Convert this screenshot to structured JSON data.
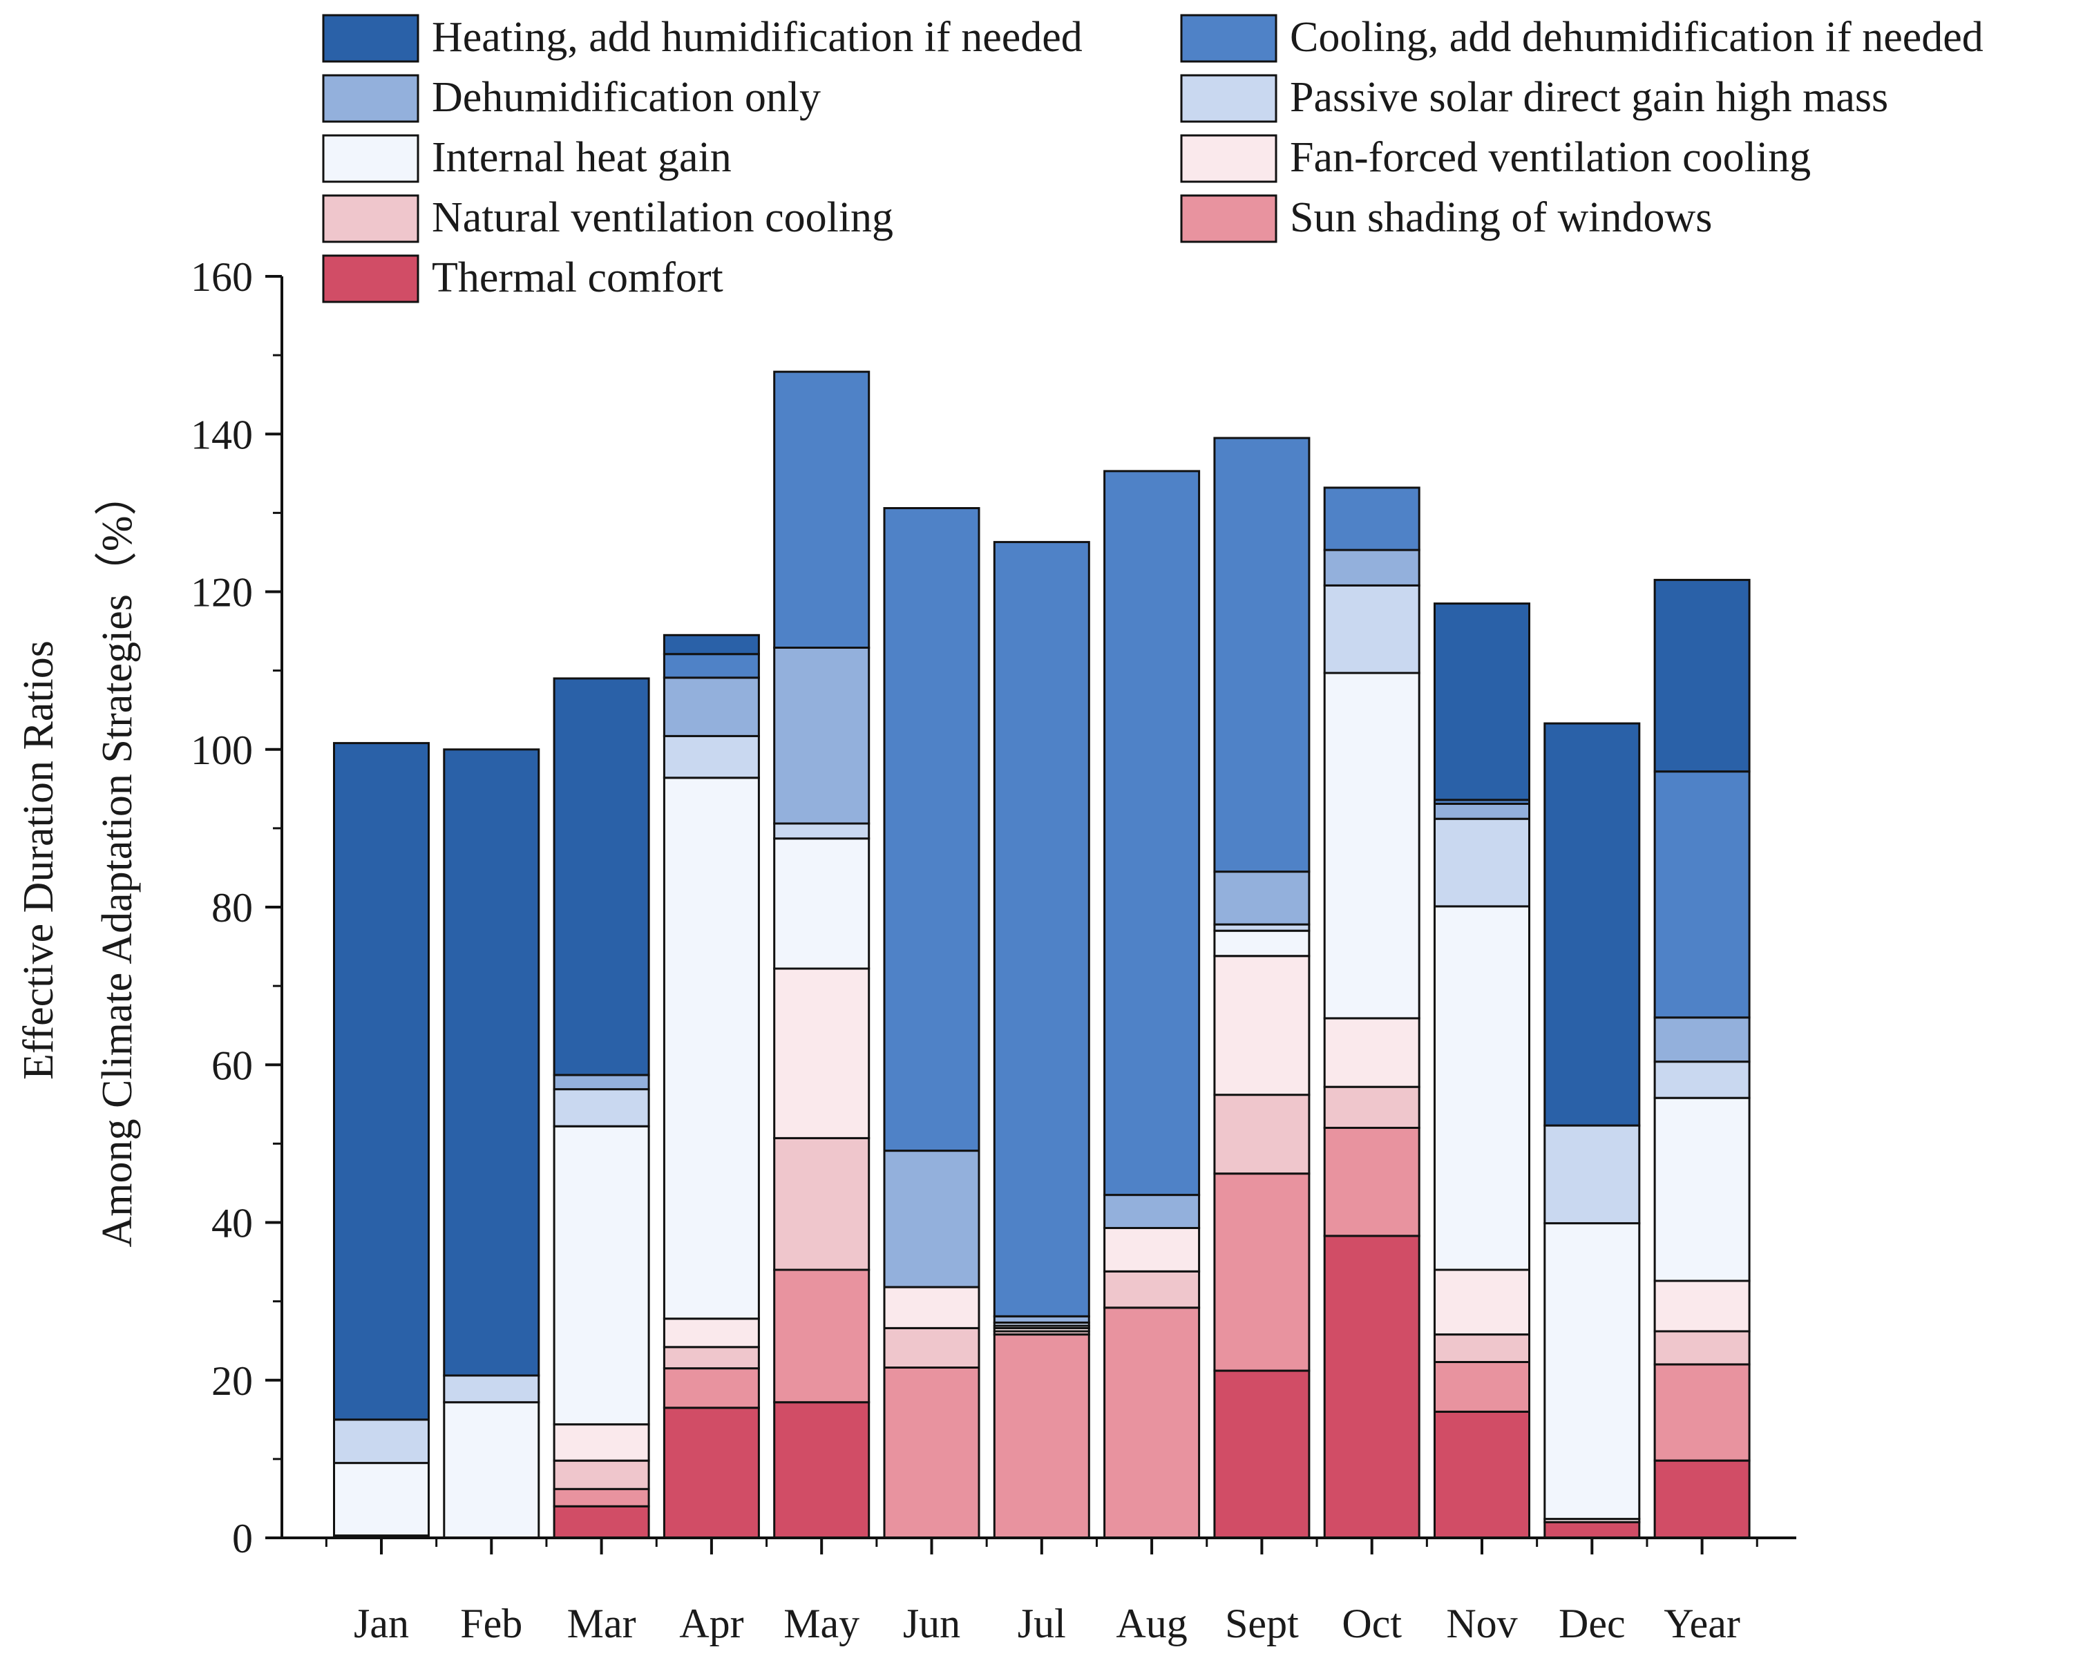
{
  "chart_data": {
    "type": "stacked-bar",
    "title": "",
    "xlabel": "",
    "ylabel_line1": "Effective Duration Ratios",
    "ylabel_line2": "Among Climate Adaptation Strategies（%）",
    "ylim": [
      0,
      160
    ],
    "yticks": [
      0,
      20,
      40,
      60,
      80,
      100,
      120,
      140,
      160
    ],
    "ytick_labels": [
      "0",
      "20",
      "40",
      "60",
      "80",
      "100",
      "120",
      "140",
      "160"
    ],
    "legend_position": "top",
    "categories": [
      "Jan",
      "Feb",
      "Mar",
      "Apr",
      "May",
      "Jun",
      "Jul",
      "Aug",
      "Sept",
      "Oct",
      "Nov",
      "Dec",
      "Year"
    ],
    "series": [
      {
        "name": "Thermal comfort",
        "color": "#D14D66",
        "values": [
          0.3,
          0,
          4,
          16.5,
          17.2,
          0,
          0,
          0,
          21.2,
          38.3,
          16,
          2,
          9.8
        ]
      },
      {
        "name": "Sun shading of windows",
        "color": "#E8939F",
        "values": [
          0,
          0,
          2.2,
          5,
          16.8,
          21.6,
          25.8,
          29.2,
          25,
          13.7,
          6.3,
          0,
          12.2
        ]
      },
      {
        "name": "Natural ventilation cooling",
        "color": "#EFC6CC",
        "values": [
          0,
          0,
          3.6,
          2.7,
          16.7,
          5,
          0.4,
          4.6,
          10,
          5.2,
          3.5,
          0,
          4.2
        ]
      },
      {
        "name": "Fan-forced ventilation cooling",
        "color": "#FAE9EC",
        "values": [
          0,
          0,
          4.6,
          3.6,
          21.5,
          5.2,
          0.4,
          5.5,
          17.6,
          8.7,
          8.2,
          0.4,
          6.4
        ]
      },
      {
        "name": "Internal heat gain",
        "color": "#F2F6FD",
        "values": [
          9.2,
          17.2,
          37.8,
          68.6,
          16.5,
          0,
          0.3,
          0,
          3.2,
          43.8,
          46.1,
          37.5,
          23.2
        ]
      },
      {
        "name": "Passive solar direct gain high mass",
        "color": "#C9D8F0",
        "values": [
          5.5,
          3.4,
          4.7,
          5.3,
          1.9,
          0,
          0.4,
          0,
          0.8,
          11.1,
          11.1,
          12.4,
          4.6
        ]
      },
      {
        "name": "Dehumidification only",
        "color": "#93B0DC",
        "values": [
          0,
          0,
          1.8,
          7.4,
          22.3,
          17.3,
          0.8,
          4.2,
          6.7,
          4.5,
          1.9,
          0,
          5.6
        ]
      },
      {
        "name": "Cooling, add dehumidification if needed",
        "color": "#4F82C7",
        "values": [
          0,
          0,
          0,
          3,
          35,
          81.5,
          98.2,
          91.8,
          55,
          7.9,
          0.5,
          0,
          31.2
        ]
      },
      {
        "name": "Heating, add humidification if needed",
        "color": "#2A61A8",
        "values": [
          85.8,
          79.4,
          50.3,
          2.4,
          0,
          0,
          0,
          0,
          0,
          0,
          24.9,
          51,
          24.3
        ]
      }
    ]
  }
}
